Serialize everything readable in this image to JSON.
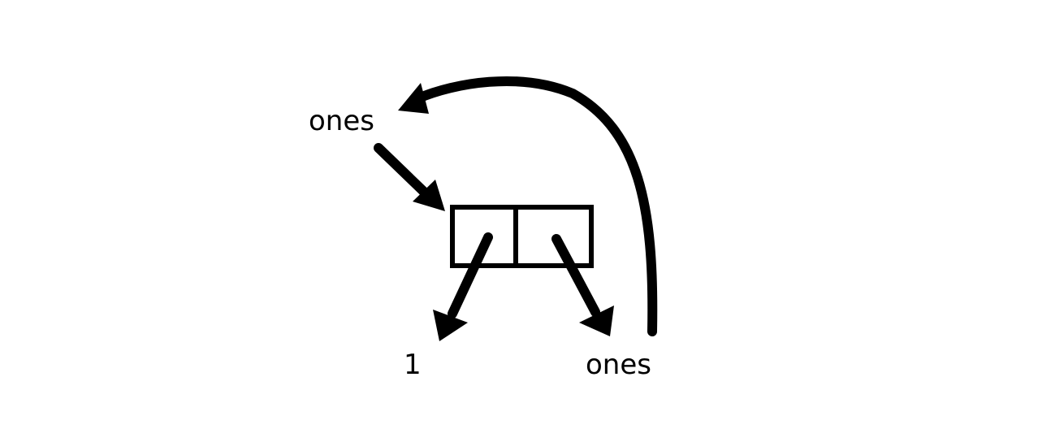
{
  "labels": {
    "ones_top": "ones",
    "car_value": "1",
    "ones_bottom": "ones"
  },
  "colors": {
    "ink": "#000000",
    "background": "#ffffff"
  }
}
